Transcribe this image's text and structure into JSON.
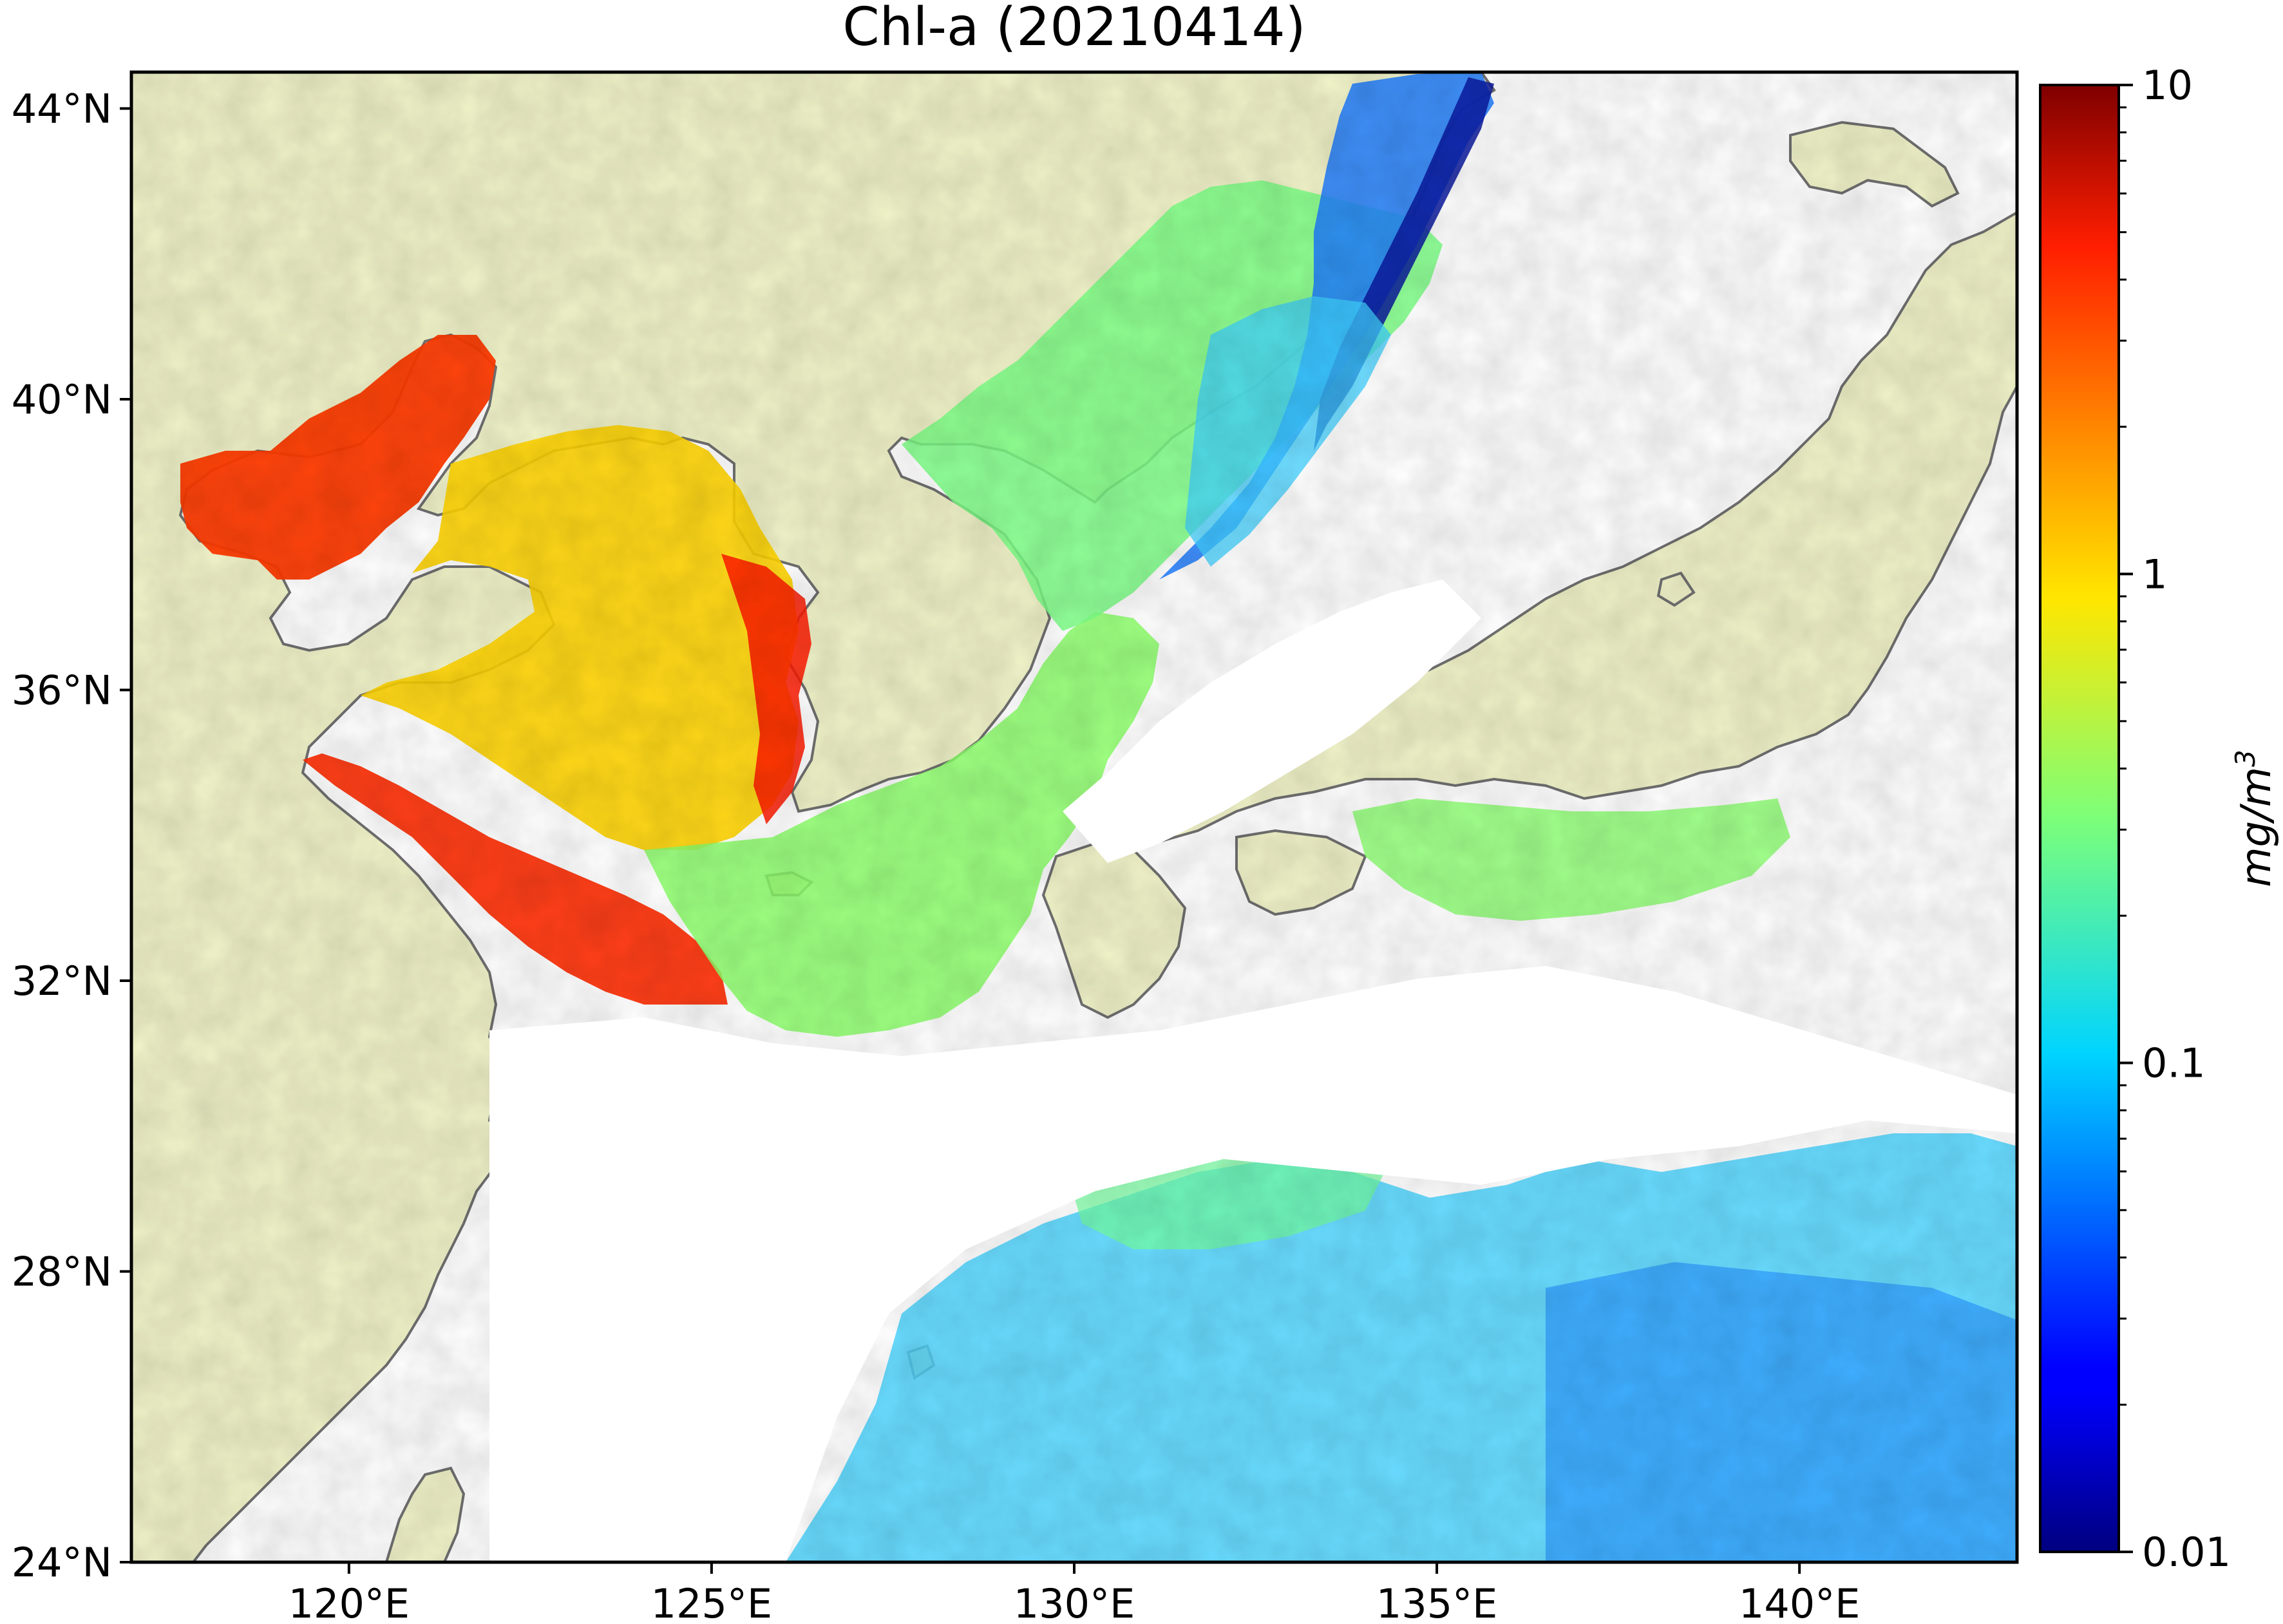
{
  "title": "Chl-a (20210414)",
  "map": {
    "lon_range": [
      117,
      143
    ],
    "lat_range": [
      24,
      44.5
    ],
    "land_color": "#f0f2c8",
    "ocean_nodata_color": "#ffffff",
    "coastline_color": "#707070",
    "lat_ticks": [
      {
        "value": 44,
        "label": "44°N"
      },
      {
        "value": 40,
        "label": "40°N"
      },
      {
        "value": 36,
        "label": "36°N"
      },
      {
        "value": 32,
        "label": "32°N"
      },
      {
        "value": 28,
        "label": "28°N"
      },
      {
        "value": 24,
        "label": "24°N"
      }
    ],
    "lon_ticks": [
      {
        "value": 120,
        "label": "120°E"
      },
      {
        "value": 125,
        "label": "125°E"
      },
      {
        "value": 130,
        "label": "130°E"
      },
      {
        "value": 135,
        "label": "135°E"
      },
      {
        "value": 140,
        "label": "140°E"
      }
    ]
  },
  "colorbar": {
    "colormap": "jet",
    "scale": "log",
    "range": [
      0.01,
      10
    ],
    "label": "mg/m3",
    "label_base": "mg/m",
    "label_exp": "3",
    "ticks": [
      {
        "value": 10,
        "label": "10"
      },
      {
        "value": 1,
        "label": "1"
      },
      {
        "value": 0.1,
        "label": "0.1"
      },
      {
        "value": 0.01,
        "label": "0.01"
      }
    ]
  }
}
